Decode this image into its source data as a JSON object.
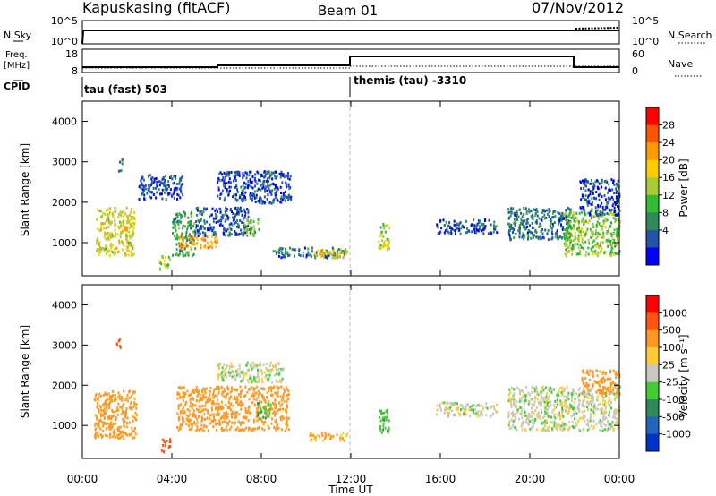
{
  "header": {
    "station": "Kapuskasing (fitACF)",
    "beam": "Beam 01",
    "date": "07/Nov/2012"
  },
  "status_panels": {
    "nsky_label": "N.Sky",
    "nsky_ticks": [
      "10^5",
      "10^0"
    ],
    "nsearch_label": "N.Search",
    "nsearch_ticks": [
      "10^5",
      "10^0"
    ],
    "freq_label_1": "Freq.",
    "freq_label_2": "[MHz]",
    "freq_ticks": [
      "18",
      "8"
    ],
    "nave_label": "Nave",
    "nave_ticks": [
      "60",
      "0"
    ],
    "cpid_label": "CPID",
    "cpid_left": "tau (fast) 503",
    "cpid_right": "themis (tau) -3310"
  },
  "chart_data": [
    {
      "type": "heatmap",
      "name": "power",
      "xlabel": "",
      "ylabel": "Slant Range [km]",
      "xlim": [
        0,
        24
      ],
      "ylim": [
        180,
        4500
      ],
      "yticks": [
        "1000",
        "2000",
        "3000",
        "4000"
      ],
      "colorbar_label": "Power [dB]",
      "colorbar_ticks": [
        "28",
        "24",
        "20",
        "16",
        "12",
        "8",
        "4"
      ],
      "colorbar_colors": [
        "#0000ff",
        "#2255aa",
        "#2e8b57",
        "#33bb33",
        "#aacc33",
        "#ffcc00",
        "#ff9900",
        "#ff5500",
        "#ff0000"
      ],
      "regions": [
        {
          "t": [
            0.6,
            2.3
          ],
          "r": [
            700,
            1900
          ],
          "level": 20
        },
        {
          "t": [
            1.6,
            1.8
          ],
          "r": [
            2800,
            3150
          ],
          "level": 8
        },
        {
          "t": [
            2.5,
            4.5
          ],
          "r": [
            2100,
            2700
          ],
          "level": 6
        },
        {
          "t": [
            3.4,
            3.9
          ],
          "r": [
            350,
            700
          ],
          "level": 18
        },
        {
          "t": [
            4.0,
            5.0
          ],
          "r": [
            700,
            1800
          ],
          "level": 12
        },
        {
          "t": [
            4.2,
            6.0
          ],
          "r": [
            900,
            1200
          ],
          "level": 26
        },
        {
          "t": [
            5.0,
            7.5
          ],
          "r": [
            1200,
            1900
          ],
          "level": 6
        },
        {
          "t": [
            6.0,
            9.3
          ],
          "r": [
            2000,
            2800
          ],
          "level": 5
        },
        {
          "t": [
            7.2,
            7.9
          ],
          "r": [
            1200,
            1600
          ],
          "level": 16
        },
        {
          "t": [
            8.5,
            11.8
          ],
          "r": [
            650,
            900
          ],
          "level": 8
        },
        {
          "t": [
            10.3,
            11.8
          ],
          "r": [
            650,
            850
          ],
          "level": 22
        },
        {
          "t": [
            13.2,
            13.7
          ],
          "r": [
            850,
            1500
          ],
          "level": 18
        },
        {
          "t": [
            15.8,
            18.5
          ],
          "r": [
            1250,
            1600
          ],
          "level": 6
        },
        {
          "t": [
            19.0,
            21.8
          ],
          "r": [
            1100,
            1900
          ],
          "level": 8
        },
        {
          "t": [
            21.5,
            24.0
          ],
          "r": [
            700,
            1800
          ],
          "level": 16
        },
        {
          "t": [
            22.2,
            24.0
          ],
          "r": [
            1700,
            2600
          ],
          "level": 5
        }
      ]
    },
    {
      "type": "heatmap",
      "name": "velocity",
      "xlabel": "Time UT",
      "ylabel": "Slant Range [km]",
      "xlim": [
        0,
        24
      ],
      "ylim": [
        180,
        4500
      ],
      "xticks": [
        "00:00",
        "04:00",
        "08:00",
        "12:00",
        "16:00",
        "20:00",
        "00:00"
      ],
      "yticks": [
        "1000",
        "2000",
        "3000",
        "4000"
      ],
      "colorbar_label": "Velocity [m s⁻¹]",
      "colorbar_ticks": [
        "1000",
        "500",
        "100",
        "25",
        "-25",
        "-100",
        "-500",
        "-1000"
      ],
      "colorbar_colors": [
        "#0033cc",
        "#1f66bb",
        "#2e8b57",
        "#44cc33",
        "#c8c8c0",
        "#ffcc33",
        "#ff9922",
        "#ff5511",
        "#ff0000"
      ],
      "regions": [
        {
          "t": [
            0.5,
            2.4
          ],
          "r": [
            700,
            1900
          ],
          "level": -200
        },
        {
          "t": [
            1.5,
            1.7
          ],
          "r": [
            2900,
            3200
          ],
          "level": -800
        },
        {
          "t": [
            3.5,
            3.9
          ],
          "r": [
            350,
            700
          ],
          "level": -600
        },
        {
          "t": [
            4.2,
            9.2
          ],
          "r": [
            900,
            2000
          ],
          "level": -150
        },
        {
          "t": [
            6.0,
            9.0
          ],
          "r": [
            2100,
            2600
          ],
          "level": 0
        },
        {
          "t": [
            7.8,
            8.4
          ],
          "r": [
            1200,
            1600
          ],
          "level": 80
        },
        {
          "t": [
            10.0,
            11.8
          ],
          "r": [
            650,
            850
          ],
          "level": -120
        },
        {
          "t": [
            13.2,
            13.7
          ],
          "r": [
            850,
            1500
          ],
          "level": 80
        },
        {
          "t": [
            15.8,
            18.5
          ],
          "r": [
            1250,
            1600
          ],
          "level": 0
        },
        {
          "t": [
            19.0,
            24.0
          ],
          "r": [
            900,
            2000
          ],
          "level": 0
        },
        {
          "t": [
            22.3,
            24.0
          ],
          "r": [
            1800,
            2400
          ],
          "level": -150
        }
      ]
    }
  ]
}
